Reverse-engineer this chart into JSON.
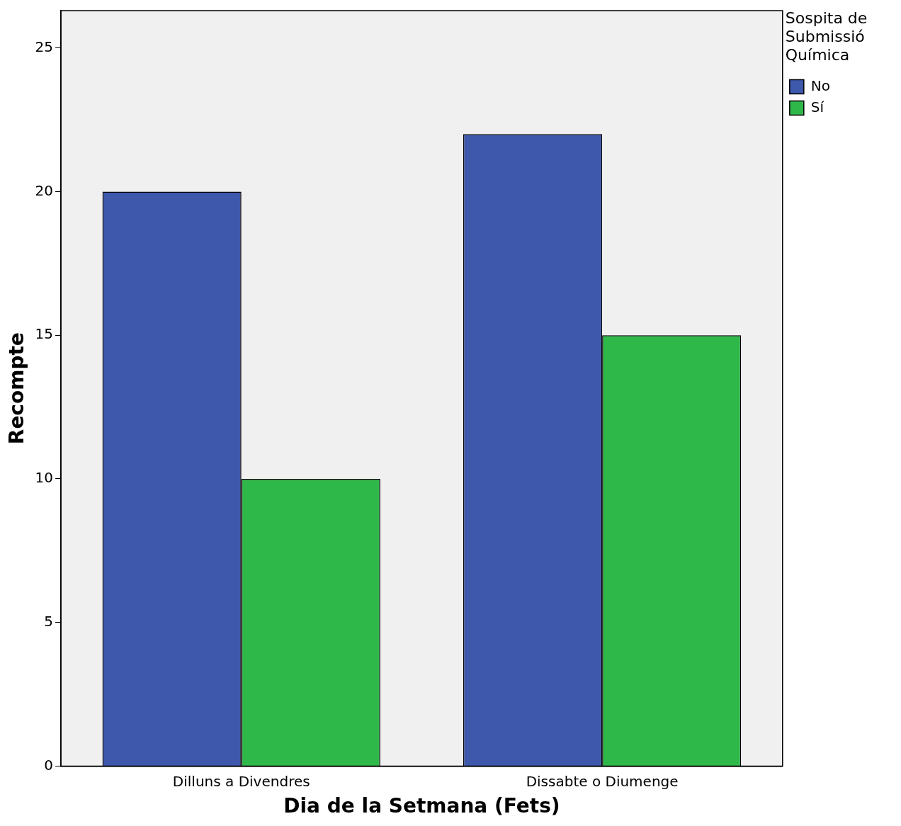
{
  "chart_data": {
    "type": "bar",
    "xlabel": "Dia de la Setmana (Fets)",
    "ylabel": "Recompte",
    "legend_title": "Sospita de Submissió Química",
    "categories": [
      "Dilluns a Divendres",
      "Dissabte o Diumenge"
    ],
    "series": [
      {
        "name": "No",
        "color": "#3e58ac",
        "values": [
          20,
          22
        ]
      },
      {
        "name": "Sí",
        "color": "#2fb84a",
        "values": [
          10,
          15
        ]
      }
    ],
    "ylim": [
      0,
      26.3
    ],
    "yticks": [
      0,
      5,
      10,
      15,
      20,
      25
    ],
    "grid": false,
    "legend": "top right"
  }
}
